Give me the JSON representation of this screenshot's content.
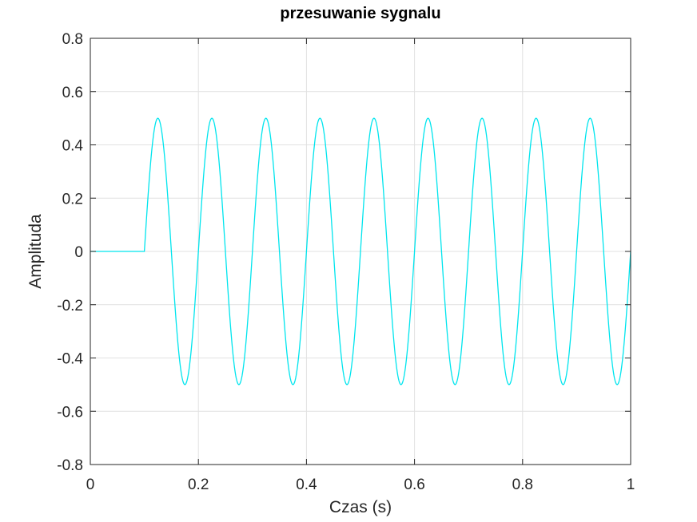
{
  "chart_data": {
    "type": "line",
    "title": "przesuwanie sygnalu",
    "xlabel": "Czas (s)",
    "ylabel": "Amplituda",
    "xlim": [
      0,
      1
    ],
    "ylim": [
      -0.8,
      0.8
    ],
    "grid": true,
    "x_ticks": [
      0,
      0.2,
      0.4,
      0.6,
      0.8,
      1
    ],
    "x_tick_labels": [
      "0",
      "0.2",
      "0.4",
      "0.6",
      "0.8",
      "1"
    ],
    "y_ticks": [
      -0.8,
      -0.6,
      -0.4,
      -0.2,
      0,
      0.2,
      0.4,
      0.6,
      0.8
    ],
    "y_tick_labels": [
      "-0.8",
      "-0.6",
      "-0.4",
      "-0.2",
      "0",
      "0.2",
      "0.4",
      "0.6",
      "0.8"
    ],
    "series": [
      {
        "color": "#00e5ee",
        "signal": {
          "form": "delayed sine",
          "amplitude": 0.5,
          "frequency_hz": 10,
          "delay_s": 0.1,
          "value_before_delay": 0
        },
        "x": [
          0,
          0.1,
          0.125,
          0.15,
          0.175,
          0.2,
          0.225,
          0.25,
          0.275,
          0.3,
          0.325,
          0.35,
          0.375,
          0.4,
          0.425,
          0.45,
          0.475,
          0.5,
          0.525,
          0.55,
          0.575,
          0.6,
          0.625,
          0.65,
          0.675,
          0.7,
          0.725,
          0.75,
          0.775,
          0.8,
          0.825,
          0.85,
          0.875,
          0.9,
          0.925,
          0.95,
          0.975,
          1.0
        ],
        "y": [
          0,
          0,
          0.5,
          0,
          -0.5,
          0,
          0.5,
          0,
          -0.5,
          0,
          0.5,
          0,
          -0.5,
          0,
          0.5,
          0,
          -0.5,
          0,
          0.5,
          0,
          -0.5,
          0,
          0.5,
          0,
          -0.5,
          0,
          0.5,
          0,
          -0.5,
          0,
          0.5,
          0,
          -0.5,
          0,
          0.5,
          0,
          -0.5,
          0
        ]
      }
    ]
  }
}
